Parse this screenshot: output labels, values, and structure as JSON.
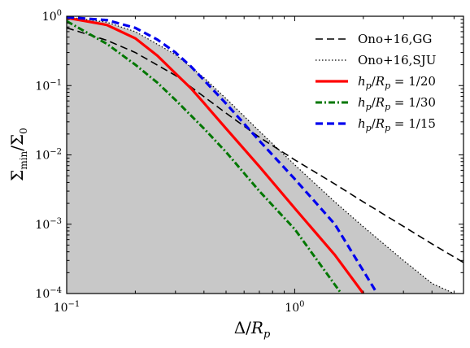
{
  "chart_data": {
    "type": "line",
    "xlabel": "Δ/R_p",
    "ylabel": "Σ_min/Σ_0",
    "xscale": "log",
    "yscale": "log",
    "xlim": [
      0.1,
      5.5
    ],
    "ylim": [
      0.0001,
      1
    ],
    "xticks": [
      {
        "value": 0.1,
        "label": "10",
        "exp": "−1"
      },
      {
        "value": 1,
        "label": "10",
        "exp": "0"
      }
    ],
    "yticks": [
      {
        "value": 1,
        "label": "10",
        "exp": "0"
      },
      {
        "value": 0.1,
        "label": "10",
        "exp": "−1"
      },
      {
        "value": 0.01,
        "label": "10",
        "exp": "−2"
      },
      {
        "value": 0.001,
        "label": "10",
        "exp": "−3"
      },
      {
        "value": 0.0001,
        "label": "10",
        "exp": "−4"
      }
    ],
    "grid": false,
    "legend_position": "top-right",
    "shaded_region": {
      "under_series": "Ono+16,SJU",
      "color": "#c8c8c8"
    },
    "series": [
      {
        "name": "Ono+16,GG",
        "color": "#000000",
        "style": "dashed",
        "width": 1.6,
        "x": [
          0.1,
          0.15,
          0.2,
          0.3,
          0.5,
          0.7,
          1.0,
          1.5,
          2.0,
          3.0,
          4.0,
          5.5
        ],
        "y": [
          0.68,
          0.45,
          0.3,
          0.14,
          0.04,
          0.018,
          0.0085,
          0.0038,
          0.0021,
          0.00093,
          0.00052,
          0.00028
        ]
      },
      {
        "name": "Ono+16,SJU",
        "color": "#000000",
        "style": "dotted",
        "width": 1.2,
        "x": [
          0.1,
          0.15,
          0.2,
          0.3,
          0.4,
          0.5,
          0.7,
          1.0,
          1.5,
          2.0,
          3.0,
          4.0,
          5.0
        ],
        "y": [
          0.98,
          0.82,
          0.6,
          0.28,
          0.13,
          0.065,
          0.022,
          0.0072,
          0.0021,
          0.00092,
          0.0003,
          0.00014,
          0.0001
        ]
      },
      {
        "name": "h_p/R_p = 1/20",
        "color": "#ff0000",
        "style": "solid",
        "width": 3.2,
        "x": [
          0.1,
          0.15,
          0.2,
          0.25,
          0.3,
          0.35,
          0.4,
          0.5,
          0.7,
          1.0,
          1.5,
          2.0
        ],
        "y": [
          0.95,
          0.75,
          0.48,
          0.27,
          0.15,
          0.092,
          0.056,
          0.024,
          0.0068,
          0.0017,
          0.00036,
          0.0001
        ]
      },
      {
        "name": "h_p/R_p = 1/30",
        "color": "#007700",
        "style": "dashdot",
        "width": 3,
        "x": [
          0.1,
          0.15,
          0.2,
          0.25,
          0.3,
          0.4,
          0.5,
          0.7,
          1.0,
          1.6
        ],
        "y": [
          0.85,
          0.4,
          0.2,
          0.11,
          0.062,
          0.024,
          0.011,
          0.003,
          0.00085,
          0.0001
        ]
      },
      {
        "name": "h_p/R_p = 1/15",
        "color": "#0000ee",
        "style": "dashed",
        "width": 3.2,
        "x": [
          0.1,
          0.15,
          0.2,
          0.25,
          0.3,
          0.35,
          0.4,
          0.5,
          0.7,
          1.0,
          1.5,
          2.3
        ],
        "y": [
          0.97,
          0.88,
          0.68,
          0.46,
          0.3,
          0.19,
          0.12,
          0.055,
          0.016,
          0.0045,
          0.001,
          0.0001
        ]
      }
    ],
    "legend": [
      {
        "label": "Ono+16,GG",
        "series": 0
      },
      {
        "label": "Ono+16,SJU",
        "series": 1
      },
      {
        "label": "h_p/R_p = 1/20",
        "series": 2
      },
      {
        "label": "h_p/R_p = 1/30",
        "series": 3
      },
      {
        "label": "h_p/R_p = 1/15",
        "series": 4
      }
    ]
  }
}
